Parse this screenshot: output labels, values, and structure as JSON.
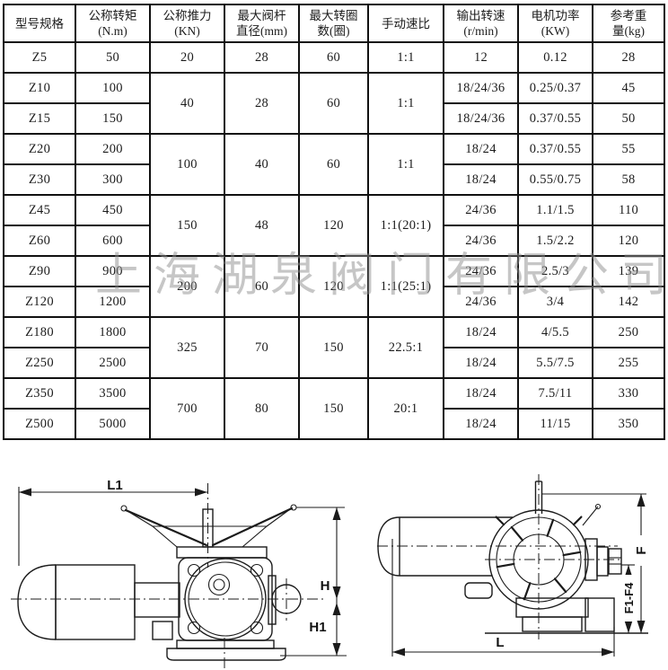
{
  "watermark": "上海湖泉阀门有限公司",
  "table": {
    "headers": [
      [
        "型号规格",
        ""
      ],
      [
        "公称转矩",
        "(N.m)"
      ],
      [
        "公称推力",
        "(KN)"
      ],
      [
        "最大阀杆",
        "直径(mm)"
      ],
      [
        "最大转圈",
        "数(圈)"
      ],
      [
        "手动速比",
        ""
      ],
      [
        "输出转速",
        "(r/min)"
      ],
      [
        "电机功率",
        "(KW)"
      ],
      [
        "参考重",
        "量(kg)"
      ]
    ],
    "groups": [
      {
        "thrust": "20",
        "stem": "28",
        "turns": "60",
        "ratio": "1:1",
        "rows": [
          [
            "Z5",
            "50",
            "12",
            "0.12",
            "28"
          ]
        ]
      },
      {
        "thrust": "40",
        "stem": "28",
        "turns": "60",
        "ratio": "1:1",
        "rows": [
          [
            "Z10",
            "100",
            "18/24/36",
            "0.25/0.37",
            "45"
          ],
          [
            "Z15",
            "150",
            "18/24/36",
            "0.37/0.55",
            "50"
          ]
        ]
      },
      {
        "thrust": "100",
        "stem": "40",
        "turns": "60",
        "ratio": "1:1",
        "rows": [
          [
            "Z20",
            "200",
            "18/24",
            "0.37/0.55",
            "55"
          ],
          [
            "Z30",
            "300",
            "18/24",
            "0.55/0.75",
            "58"
          ]
        ]
      },
      {
        "thrust": "150",
        "stem": "48",
        "turns": "120",
        "ratio": "1:1(20:1)",
        "rows": [
          [
            "Z45",
            "450",
            "24/36",
            "1.1/1.5",
            "110"
          ],
          [
            "Z60",
            "600",
            "24/36",
            "1.5/2.2",
            "120"
          ]
        ]
      },
      {
        "thrust": "200",
        "stem": "60",
        "turns": "120",
        "ratio": "1:1(25:1)",
        "rows": [
          [
            "Z90",
            "900",
            "24/36",
            "2.5/3",
            "139"
          ],
          [
            "Z120",
            "1200",
            "24/36",
            "3/4",
            "142"
          ]
        ]
      },
      {
        "thrust": "325",
        "stem": "70",
        "turns": "150",
        "ratio": "22.5:1",
        "rows": [
          [
            "Z180",
            "1800",
            "18/24",
            "4/5.5",
            "250"
          ],
          [
            "Z250",
            "2500",
            "18/24",
            "5.5/7.5",
            "255"
          ]
        ]
      },
      {
        "thrust": "700",
        "stem": "80",
        "turns": "150",
        "ratio": "20:1",
        "rows": [
          [
            "Z350",
            "3500",
            "18/24",
            "7.5/11",
            "330"
          ],
          [
            "Z500",
            "5000",
            "18/24",
            "11/15",
            "350"
          ]
        ]
      }
    ]
  },
  "drawings": {
    "left": {
      "l1": "L1",
      "h": "H",
      "h1": "H1"
    },
    "right": {
      "l": "L",
      "f": "F",
      "f1f4": "F1-F4"
    }
  }
}
